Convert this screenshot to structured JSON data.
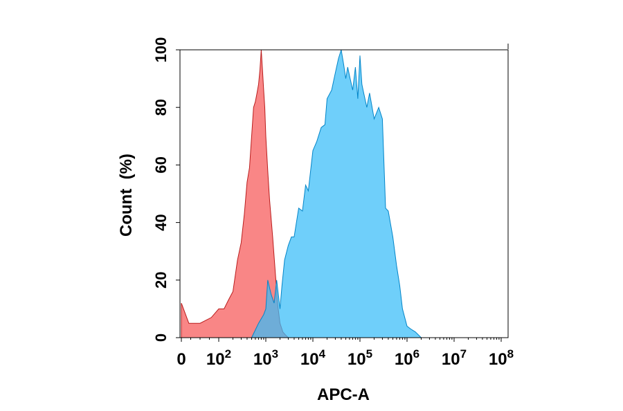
{
  "chart_data": {
    "type": "area",
    "title": "",
    "xlabel": "APC-A",
    "ylabel": "Count  (%)",
    "ylim": [
      0,
      100
    ],
    "xscale": "biexponential",
    "grid": false,
    "legend": "none",
    "y_ticks": [
      "0",
      "20",
      "40",
      "60",
      "80",
      "100"
    ],
    "x_ticks": [
      {
        "base": "0",
        "exp": ""
      },
      {
        "base": "10",
        "exp": "2"
      },
      {
        "base": "10",
        "exp": "3"
      },
      {
        "base": "10",
        "exp": "4"
      },
      {
        "base": "10",
        "exp": "5"
      },
      {
        "base": "10",
        "exp": "6"
      },
      {
        "base": "10",
        "exp": "7"
      },
      {
        "base": "10",
        "exp": "8"
      }
    ],
    "series": [
      {
        "color": "#f87171",
        "stroke": "#b91c1c",
        "x": [
          0,
          20,
          50,
          80,
          100,
          130,
          160,
          200,
          250,
          300,
          350,
          400,
          450,
          500,
          550,
          600,
          650,
          700,
          750,
          800,
          850,
          900,
          950,
          1000,
          1100,
          1200,
          1400,
          1600,
          1800,
          2000,
          2300,
          2600,
          3000,
          4000
        ],
        "values": [
          12,
          5,
          5,
          7,
          10,
          10,
          13,
          16,
          27,
          33,
          43,
          54,
          59,
          70,
          80,
          82,
          85,
          88,
          93,
          100,
          93,
          86,
          80,
          70,
          58,
          48,
          35,
          22,
          11,
          5,
          2,
          1,
          0,
          0
        ]
      },
      {
        "color": "#38bdf8",
        "stroke": "#0284c7",
        "x": [
          500,
          700,
          900,
          1000,
          1100,
          1300,
          1500,
          1700,
          2000,
          2200,
          2500,
          3000,
          3500,
          4000,
          5000,
          6000,
          7000,
          8000,
          10000,
          12000,
          15000,
          18000,
          20000,
          25000,
          30000,
          35000,
          40000,
          45000,
          50000,
          55000,
          60000,
          70000,
          80000,
          90000,
          100000,
          110000,
          120000,
          140000,
          160000,
          200000,
          250000,
          300000,
          350000,
          400000,
          500000,
          600000,
          700000,
          800000,
          1000000,
          1200000,
          1500000,
          2000000
        ],
        "values": [
          0,
          5,
          8,
          10,
          20,
          15,
          12,
          20,
          10,
          18,
          27,
          32,
          35,
          35,
          45,
          44,
          53,
          51,
          65,
          68,
          73,
          74,
          83,
          86,
          92,
          97,
          100,
          95,
          90,
          94,
          91,
          86,
          94,
          83,
          98,
          88,
          85,
          80,
          85,
          76,
          80,
          76,
          45,
          44,
          35,
          25,
          18,
          10,
          4,
          3,
          2,
          0
        ]
      }
    ]
  }
}
